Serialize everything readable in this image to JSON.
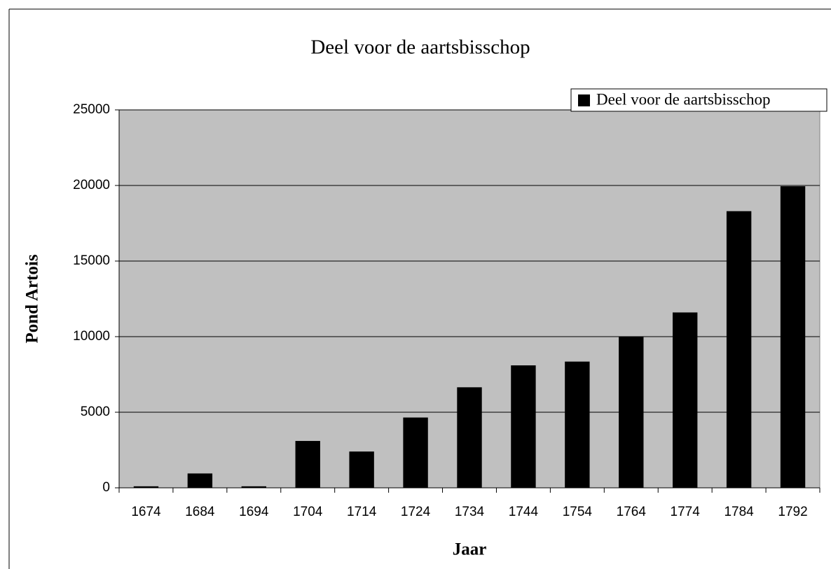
{
  "chart_data": {
    "type": "bar",
    "title": "Deel voor de aartsbisschop",
    "x_label": "Jaar",
    "y_label": "Pond Artois",
    "categories": [
      "1674",
      "1684",
      "1694",
      "1704",
      "1714",
      "1724",
      "1734",
      "1744",
      "1754",
      "1764",
      "1774",
      "1784",
      "1792"
    ],
    "series": [
      {
        "name": "Deel voor de aartsbisschop",
        "color": "#000000",
        "values": [
          100,
          950,
          100,
          3100,
          2400,
          4650,
          6650,
          8100,
          8350,
          10000,
          11600,
          18300,
          19950
        ]
      }
    ],
    "ylim": [
      0,
      25000
    ],
    "yticks": [
      0,
      5000,
      10000,
      15000,
      20000,
      25000
    ],
    "grid": true,
    "legend": "top-right",
    "plot_background": "#c0c0c0"
  }
}
